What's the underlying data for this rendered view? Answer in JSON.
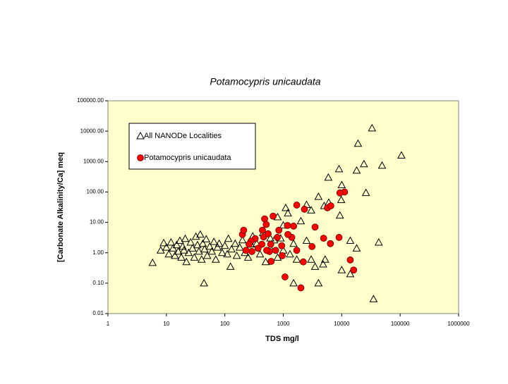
{
  "chart_data": {
    "type": "scatter",
    "title": "Potamocypris unicaudata",
    "x_label": "TDS  mg/l",
    "y_label": "[Carbonate Alkalinity/Ca] meq",
    "log_x": true,
    "log_y": true,
    "grid": false,
    "legend": "upper left",
    "background": "#ffffcc",
    "xlim": [
      1,
      1000000
    ],
    "xticks": [
      1,
      10,
      100,
      1000,
      10000,
      100000,
      1000000
    ],
    "ylim": [
      0.01,
      100000
    ],
    "yticks": [
      0.01,
      {
        "value": 0.1,
        "label": "0.10"
      },
      {
        "value": 1,
        "label": "1.00"
      },
      {
        "value": 10,
        "label": "10.00"
      },
      {
        "value": 100,
        "label": "100.00"
      },
      {
        "value": 1000,
        "label": "1000.00"
      },
      {
        "value": 10000,
        "label": "10000.00"
      },
      {
        "value": 100000,
        "label": "100000.00"
      }
    ],
    "series": [
      {
        "name": "All NANODe Localities",
        "marker": "triangle",
        "color": "#000000",
        "x": [
          5.8,
          44,
          33000,
          19000,
          105000,
          49000,
          24000,
          18000,
          9000,
          5900,
          26000,
          10000,
          9800,
          9300,
          14000,
          18000,
          43000,
          35000,
          4000,
          1500,
          10000,
          14000,
          4800,
          5200,
          8,
          9,
          10,
          11,
          12,
          13,
          14,
          15,
          16,
          17,
          18,
          19,
          20,
          21,
          22,
          24,
          26,
          28,
          30,
          32,
          34,
          36,
          38,
          40,
          42,
          45,
          48,
          50,
          55,
          60,
          65,
          70,
          75,
          80,
          90,
          100,
          110,
          115,
          125,
          130,
          150,
          160,
          180,
          200,
          220,
          250,
          280,
          300,
          350,
          400,
          450,
          500,
          600,
          700,
          800,
          900,
          1000,
          1100,
          1200,
          1300,
          1500,
          1700,
          2000,
          2500,
          3000,
          3500,
          4000,
          5000,
          6000,
          1000,
          800,
          600,
          3000,
          2500
        ],
        "values": [
          0.47,
          0.1,
          12600,
          3900,
          1600,
          740,
          830,
          510,
          570,
          300,
          94,
          170,
          55,
          17,
          2.5,
          1.4,
          2.2,
          0.03,
          0.1,
          0.1,
          0.27,
          0.2,
          0.42,
          0.6,
          1.2,
          2.1,
          1.5,
          0.9,
          2.2,
          1.4,
          0.8,
          1.8,
          1.1,
          2.5,
          0.7,
          1.6,
          1.2,
          2.9,
          0.5,
          1.0,
          2.2,
          1.4,
          0.7,
          3.4,
          1.8,
          1.1,
          4.0,
          0.6,
          2.0,
          1.3,
          2.8,
          0.8,
          1.6,
          1.1,
          2.3,
          0.6,
          1.5,
          2.0,
          1.0,
          1.7,
          0.9,
          2.9,
          0.35,
          1.3,
          2.0,
          0.8,
          1.5,
          2.6,
          1.0,
          0.7,
          1.9,
          3.5,
          2.0,
          0.9,
          4.5,
          0.5,
          1.4,
          2.6,
          0.7,
          3.0,
          1.2,
          30,
          20,
          0.9,
          2.0,
          0.6,
          11,
          38,
          25,
          0.35,
          70,
          35,
          45,
          8,
          15,
          3,
          0.6,
          2.5
        ]
      },
      {
        "name": "Potamocypris unicaudata",
        "marker": "circle",
        "color": "#ff0000",
        "x": [
          11200,
          9300,
          5700,
          6500,
          1700,
          2300,
          3500,
          3100,
          4900,
          6400,
          9000,
          14000,
          16000,
          2200,
          2000,
          1070,
          1700,
          1500,
          1400,
          1180,
          1200,
          940,
          960,
          670,
          480,
          510,
          440,
          460,
          430,
          330,
          280,
          200,
          210,
          260,
          290,
          230,
          580,
          620,
          740,
          790,
          840,
          550,
          370,
          520,
          610
        ],
        "values": [
          100,
          93,
          30,
          35,
          37,
          27,
          7,
          1.6,
          3,
          2,
          3.2,
          0.58,
          0.27,
          0.5,
          0.07,
          0.16,
          1.2,
          7.5,
          3.2,
          7.9,
          4,
          1.7,
          0.8,
          16,
          13,
          8.5,
          5.5,
          3.3,
          1.9,
          2.9,
          2.4,
          4,
          5.5,
          1.9,
          1.1,
          1.2,
          1.1,
          0.52,
          1.2,
          3.2,
          5.5,
          4.2,
          1.4,
          1.2,
          1.9
        ]
      }
    ]
  }
}
